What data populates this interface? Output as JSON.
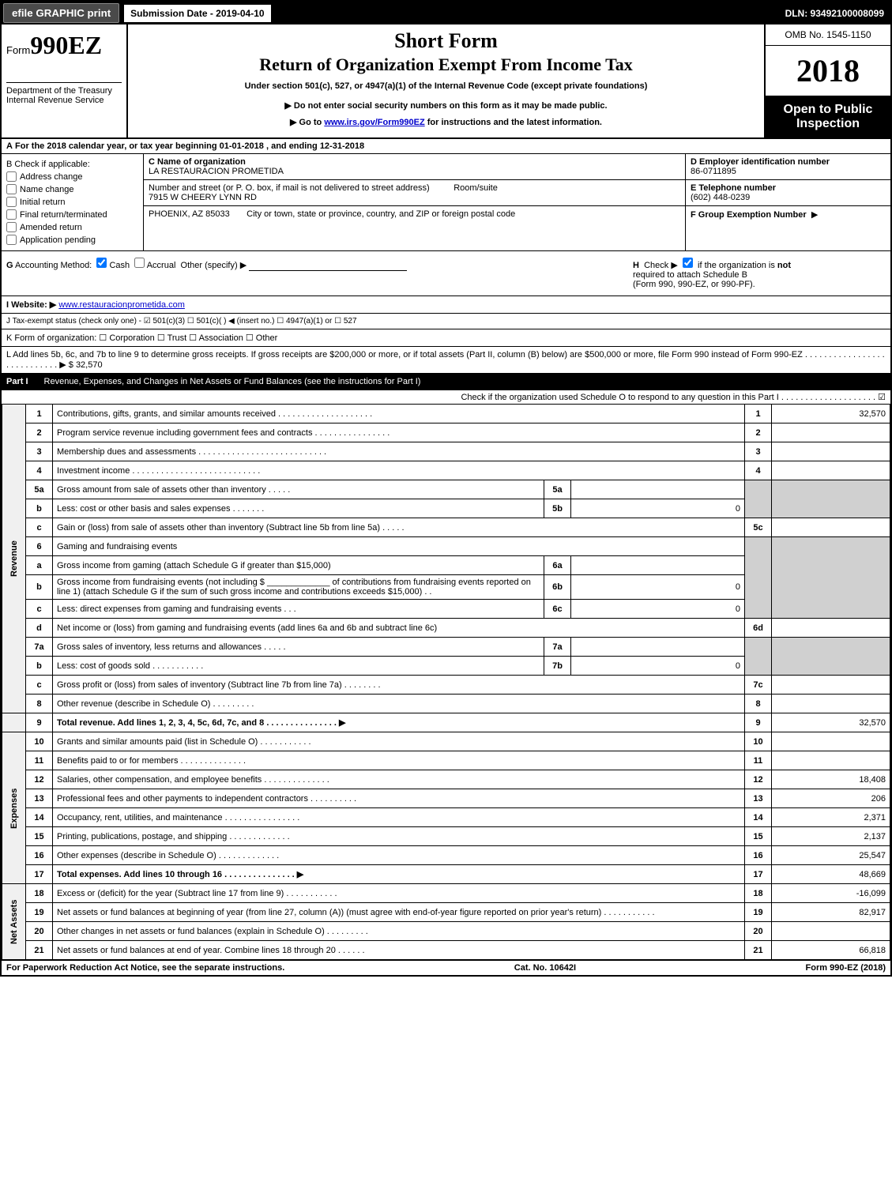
{
  "topbar": {
    "efile_btn": "efile GRAPHIC print",
    "submission_label": "Submission Date - 2019-04-10",
    "dln": "DLN: 93492100008099"
  },
  "header": {
    "form_prefix": "Form",
    "form_number": "990EZ",
    "dept1": "Department of the Treasury",
    "dept2": "Internal Revenue Service",
    "short_form": "Short Form",
    "title": "Return of Organization Exempt From Income Tax",
    "subtitle": "Under section 501(c), 527, or 4947(a)(1) of the Internal Revenue Code (except private foundations)",
    "bullet1": "▶ Do not enter social security numbers on this form as it may be made public.",
    "bullet2_pre": "▶ Go to ",
    "bullet2_link": "www.irs.gov/Form990EZ",
    "bullet2_post": " for instructions and the latest information.",
    "omb": "OMB No. 1545-1150",
    "year": "2018",
    "inspect1": "Open to Public",
    "inspect2": "Inspection"
  },
  "row_a": {
    "A": "A",
    "text_pre": "For the 2018 calendar year, or tax year beginning ",
    "begin": "01-01-2018",
    "mid": " , and ending ",
    "end": "12-31-2018"
  },
  "col_b": {
    "B": "B",
    "title": "Check if applicable:",
    "opt1": "Address change",
    "opt2": "Name change",
    "opt3": "Initial return",
    "opt4": "Final return/terminated",
    "opt5": "Amended return",
    "opt6": "Application pending"
  },
  "col_c": {
    "c_label": "C Name of organization",
    "c_name": "LA RESTAURACION PROMETIDA",
    "addr_label": "Number and street (or P. O. box, if mail is not delivered to street address)",
    "room_label": "Room/suite",
    "addr": "7915 W CHEERY LYNN RD",
    "city_label": "City or town, state or province, country, and ZIP or foreign postal code",
    "city": "PHOENIX, AZ  85033"
  },
  "col_def": {
    "d_label": "D Employer identification number",
    "d_val": "86-0711895",
    "e_label": "E Telephone number",
    "e_val": "(602) 448-0239",
    "f_label": "F Group Exemption Number",
    "f_arrow": "▶"
  },
  "row_g": {
    "G": "G",
    "label": "Accounting Method:",
    "cash": "Cash",
    "accrual": "Accrual",
    "other": "Other (specify) ▶",
    "H": "H",
    "h_text1": "Check ▶",
    "h_text2": "if the organization is ",
    "h_not": "not",
    "h_text3": " required to attach Schedule B",
    "h_text4": "(Form 990, 990-EZ, or 990-PF)."
  },
  "row_i": {
    "I": "I Website: ▶",
    "url": "www.restauracionprometida.com"
  },
  "row_j": {
    "J": "J Tax-exempt status",
    "text": "(check only one) - ☑ 501(c)(3) ☐ 501(c)(  ) ◀ (insert no.) ☐ 4947(a)(1) or ☐ 527"
  },
  "row_k": {
    "K": "K",
    "text": "Form of organization:  ☐ Corporation  ☐ Trust  ☐ Association  ☐ Other"
  },
  "row_l": {
    "L": "L",
    "text1": "Add lines 5b, 6c, and 7b to line 9 to determine gross receipts. If gross receipts are $200,000 or more, or if total assets (Part II, column (B) below) are $500,000 or more, file Form 990 instead of Form 990-EZ  .  .  .  .  .  .  .  .  .  .  .  .  .  .  .  .  .  .  .  .  .  .  .  .  .  .  .  .  ▶ $ ",
    "amount": "32,570"
  },
  "part1": {
    "label": "Part I",
    "title": "Revenue, Expenses, and Changes in Net Assets or Fund Balances (see the instructions for Part I)",
    "check": "Check if the organization used Schedule O to respond to any question in this Part I .  .  .  .  .  .  .  .  .  .  .  .  .  .  .  .  .  .  .  .  ☑"
  },
  "sections": {
    "revenue": "Revenue",
    "expenses": "Expenses",
    "netassets": "Net Assets"
  },
  "lines": {
    "l1": {
      "n": "1",
      "d": "Contributions, gifts, grants, and similar amounts received  .  .  .  .  .  .  .  .  .  .  .  .  .  .  .  .  .  .  .  .",
      "box": "1",
      "val": "32,570"
    },
    "l2": {
      "n": "2",
      "d": "Program service revenue including government fees and contracts  .  .  .  .  .  .  .  .  .  .  .  .  .  .  .  .",
      "box": "2",
      "val": ""
    },
    "l3": {
      "n": "3",
      "d": "Membership dues and assessments  .  .  .  .  .  .  .  .  .  .  .  .  .  .  .  .  .  .  .  .  .  .  .  .  .  .  .",
      "box": "3",
      "val": ""
    },
    "l4": {
      "n": "4",
      "d": "Investment income  .  .  .  .  .  .  .  .  .  .  .  .  .  .  .  .  .  .  .  .  .  .  .  .  .  .  .",
      "box": "4",
      "val": ""
    },
    "l5a": {
      "n": "5a",
      "d": "Gross amount from sale of assets other than inventory  .  .  .  .  .",
      "ib": "5a",
      "iv": ""
    },
    "l5b": {
      "n": "b",
      "d": "Less: cost or other basis and sales expenses  .  .  .  .  .  .  .",
      "ib": "5b",
      "iv": "0"
    },
    "l5c": {
      "n": "c",
      "d": "Gain or (loss) from sale of assets other than inventory (Subtract line 5b from line 5a)           .  .  .  .  .",
      "box": "5c",
      "val": ""
    },
    "l6": {
      "n": "6",
      "d": "Gaming and fundraising events"
    },
    "l6a": {
      "n": "a",
      "d": "Gross income from gaming (attach Schedule G if greater than $15,000)",
      "ib": "6a",
      "iv": ""
    },
    "l6b": {
      "n": "b",
      "d": "Gross income from fundraising events (not including $ _____________ of contributions from fundraising events reported on line 1) (attach Schedule G if the sum of such gross income and contributions exceeds $15,000)   .  .",
      "ib": "6b",
      "iv": "0"
    },
    "l6c": {
      "n": "c",
      "d": "Less: direct expenses from gaming and fundraising events          .  .  .",
      "ib": "6c",
      "iv": "0"
    },
    "l6d": {
      "n": "d",
      "d": "Net income or (loss) from gaming and fundraising events (add lines 6a and 6b and subtract line 6c)",
      "box": "6d",
      "val": ""
    },
    "l7a": {
      "n": "7a",
      "d": "Gross sales of inventory, less returns and allowances         .  .  .  .  .",
      "ib": "7a",
      "iv": ""
    },
    "l7b": {
      "n": "b",
      "d": "Less: cost of goods sold              .  .  .  .  .  .  .  .  .  .  .",
      "ib": "7b",
      "iv": "0"
    },
    "l7c": {
      "n": "c",
      "d": "Gross profit or (loss) from sales of inventory (Subtract line 7b from line 7a)          .  .  .  .  .  .  .  .",
      "box": "7c",
      "val": ""
    },
    "l8": {
      "n": "8",
      "d": "Other revenue (describe in Schedule O)                 .  .  .  .  .  .  .  .  .",
      "box": "8",
      "val": ""
    },
    "l9": {
      "n": "9",
      "d": "Total revenue. Add lines 1, 2, 3, 4, 5c, 6d, 7c, and 8         .  .  .  .  .  .  .  .  .  .  .  .  .  .  .  ▶",
      "box": "9",
      "val": "32,570"
    },
    "l10": {
      "n": "10",
      "d": "Grants and similar amounts paid (list in Schedule O)          .  .  .  .  .  .  .  .  .  .  .",
      "box": "10",
      "val": ""
    },
    "l11": {
      "n": "11",
      "d": "Benefits paid to or for members           .  .  .  .  .  .  .  .  .  .  .  .  .  .",
      "box": "11",
      "val": ""
    },
    "l12": {
      "n": "12",
      "d": "Salaries, other compensation, and employee benefits        .  .  .  .  .  .  .  .  .  .  .  .  .  .",
      "box": "12",
      "val": "18,408"
    },
    "l13": {
      "n": "13",
      "d": "Professional fees and other payments to independent contractors        .  .  .  .  .  .  .  .  .  .",
      "box": "13",
      "val": "206"
    },
    "l14": {
      "n": "14",
      "d": "Occupancy, rent, utilities, and maintenance        .  .  .  .  .  .  .  .  .  .  .  .  .  .  .  .",
      "box": "14",
      "val": "2,371"
    },
    "l15": {
      "n": "15",
      "d": "Printing, publications, postage, and shipping          .  .  .  .  .  .  .  .  .  .  .  .  .",
      "box": "15",
      "val": "2,137"
    },
    "l16": {
      "n": "16",
      "d": "Other expenses (describe in Schedule O)           .  .  .  .  .  .  .  .  .  .  .  .  .",
      "box": "16",
      "val": "25,547"
    },
    "l17": {
      "n": "17",
      "d": "Total expenses. Add lines 10 through 16           .  .  .  .  .  .  .  .  .  .  .  .  .  .  .  ▶",
      "box": "17",
      "val": "48,669"
    },
    "l18": {
      "n": "18",
      "d": "Excess or (deficit) for the year (Subtract line 17 from line 9)          .  .  .  .  .  .  .  .  .  .  .",
      "box": "18",
      "val": "-16,099"
    },
    "l19": {
      "n": "19",
      "d": "Net assets or fund balances at beginning of year (from line 27, column (A)) (must agree with end-of-year figure reported on prior year's return)          .  .  .  .  .  .  .  .  .  .  .",
      "box": "19",
      "val": "82,917"
    },
    "l20": {
      "n": "20",
      "d": "Other changes in net assets or fund balances (explain in Schedule O)        .  .  .  .  .  .  .  .  .",
      "box": "20",
      "val": ""
    },
    "l21": {
      "n": "21",
      "d": "Net assets or fund balances at end of year. Combine lines 18 through 20         .  .  .  .  .  .",
      "box": "21",
      "val": "66,818"
    }
  },
  "footer": {
    "left": "For Paperwork Reduction Act Notice, see the separate instructions.",
    "mid": "Cat. No. 10642I",
    "right": "Form 990-EZ (2018)"
  },
  "colors": {
    "black": "#000000",
    "white": "#ffffff",
    "gray_cell": "#d0d0d0",
    "link": "#0000cc"
  }
}
